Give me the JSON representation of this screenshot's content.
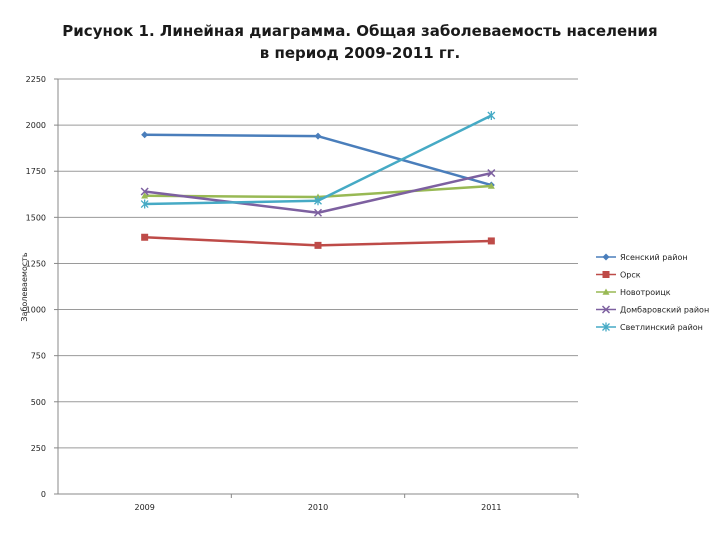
{
  "chart_data": {
    "type": "line",
    "title": "Рисунок 1. Линейная диаграмма. Общая заболеваемость населения в период 2009-2011 гг.",
    "ylabel": "Заболеваемость",
    "xlabel": "",
    "categories": [
      "2009",
      "2010",
      "2011"
    ],
    "ylim": [
      0,
      2250
    ],
    "yticks": [
      0,
      250,
      500,
      750,
      1000,
      1250,
      1500,
      1750,
      2000,
      2250
    ],
    "grid": true,
    "legend_position": "right",
    "series": [
      {
        "name": "Ясенский район",
        "values": [
          1948,
          1940,
          1675
        ],
        "color": "#4a7ebb",
        "marker": "diamond"
      },
      {
        "name": "Орск",
        "values": [
          1392,
          1348,
          1372
        ],
        "color": "#be4b48",
        "marker": "square"
      },
      {
        "name": "Новотроицк",
        "values": [
          1617,
          1610,
          1670
        ],
        "color": "#98b954",
        "marker": "triangle"
      },
      {
        "name": "Домбаровский район",
        "values": [
          1640,
          1525,
          1740
        ],
        "color": "#7d60a0",
        "marker": "x"
      },
      {
        "name": "Светлинский район",
        "values": [
          1572,
          1590,
          2052
        ],
        "color": "#46aac5",
        "marker": "star"
      }
    ]
  }
}
